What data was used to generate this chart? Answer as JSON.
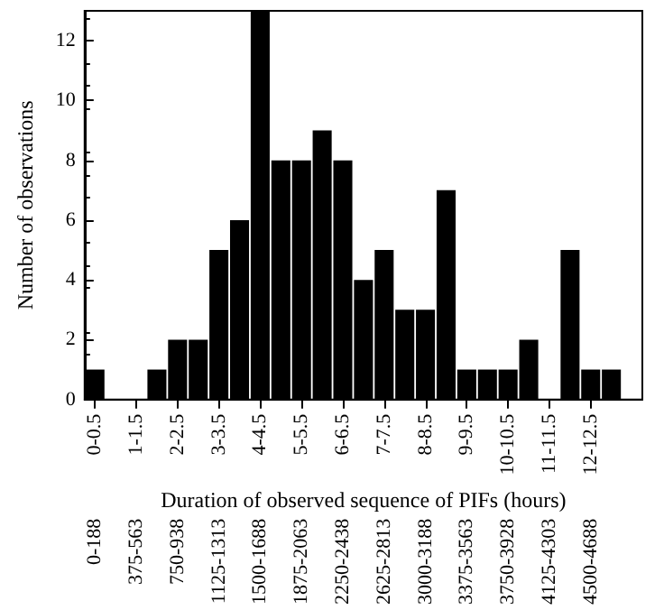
{
  "chart_data": {
    "type": "bar",
    "xlabel": "Duration of observed sequence of PIFs (hours)",
    "ylabel": "Number of observations",
    "categories": [
      "0-0.5",
      null,
      "1-1.5",
      null,
      "2-2.5",
      null,
      "3-3.5",
      null,
      "4-4.5",
      null,
      "5-5.5",
      null,
      "6-6.5",
      null,
      "7-7.5",
      null,
      "8-8.5",
      null,
      "9-9.5",
      null,
      "10-10.5",
      null,
      "11-11.5",
      null,
      "12-12.5",
      null,
      null
    ],
    "values": [
      1,
      0,
      0,
      1,
      2,
      2,
      5,
      6,
      13,
      8,
      8,
      9,
      8,
      4,
      5,
      3,
      3,
      7,
      1,
      1,
      1,
      2,
      0,
      5,
      1,
      1,
      0
    ],
    "color": "#000000",
    "annotations": [
      "0-188",
      "375-563",
      "750-938",
      "1125-1313",
      "1500-1688",
      "1875-2063",
      "2250-2438",
      "2625-2813",
      "3000-3188",
      "3375-3563",
      "3750-3928",
      "4125-4303",
      "4500-4688"
    ],
    "ylim": [
      0,
      13
    ],
    "yticks": [
      0,
      2,
      4,
      6,
      8,
      10,
      12
    ],
    "grid": false
  }
}
